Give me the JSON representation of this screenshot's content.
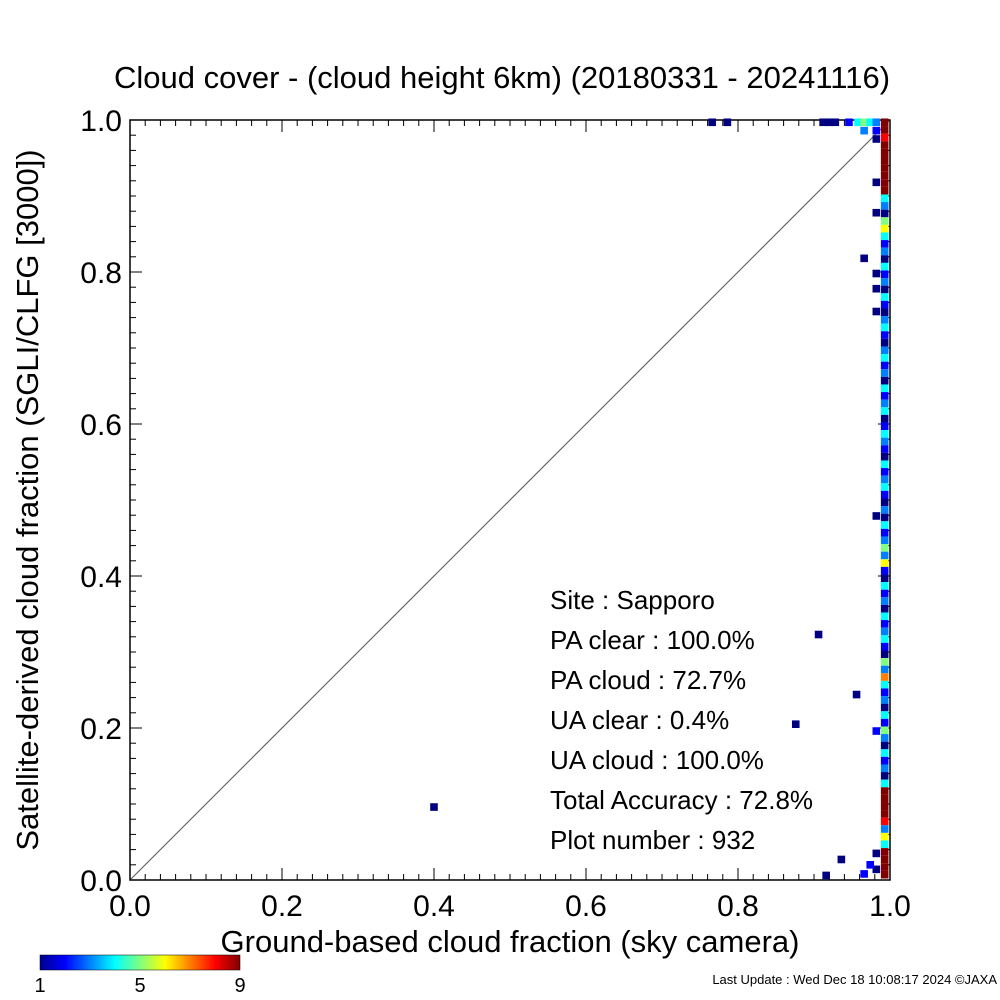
{
  "chart_data": {
    "type": "heatmap",
    "title": "Cloud cover - (cloud height 6km)  (20180331 - 20241116)",
    "xlabel": "Ground-based cloud fraction (sky camera)",
    "ylabel": "Satellite-derived cloud fraction (SGLI/CLFG [3000])",
    "xlim": [
      0.0,
      1.0
    ],
    "ylim": [
      0.0,
      1.0
    ],
    "xticks": [
      "0.0",
      "0.2",
      "0.4",
      "0.6",
      "0.8",
      "1.0"
    ],
    "yticks": [
      "0.0",
      "0.2",
      "0.4",
      "0.6",
      "0.8",
      "1.0"
    ],
    "diagonal_line": true,
    "grid": false,
    "colorbar": {
      "min": 1,
      "max": 9,
      "tick_labels": [
        "1",
        "5",
        "9"
      ],
      "placement": "bottom-left"
    },
    "stats": [
      {
        "label": "Site : Sapporo"
      },
      {
        "label": "PA clear : 100.0%"
      },
      {
        "label": "PA cloud :  72.7%"
      },
      {
        "label": "UA clear :   0.4%"
      },
      {
        "label": "UA cloud : 100.0%"
      },
      {
        "label": "Total Accuracy :  72.8%"
      },
      {
        "label": "Plot number :       932"
      }
    ],
    "points": [
      {
        "x": 0.766,
        "y": 0.997,
        "count": 1
      },
      {
        "x": 0.786,
        "y": 0.997,
        "count": 1
      },
      {
        "x": 0.912,
        "y": 0.997,
        "count": 1
      },
      {
        "x": 0.92,
        "y": 0.997,
        "count": 1
      },
      {
        "x": 0.928,
        "y": 0.997,
        "count": 1
      },
      {
        "x": 0.946,
        "y": 0.997,
        "count": 2
      },
      {
        "x": 0.958,
        "y": 0.997,
        "count": 4
      },
      {
        "x": 0.966,
        "y": 0.997,
        "count": 5
      },
      {
        "x": 0.974,
        "y": 0.997,
        "count": 4
      },
      {
        "x": 0.982,
        "y": 0.997,
        "count": 3
      },
      {
        "x": 0.966,
        "y": 0.986,
        "count": 3
      },
      {
        "x": 0.982,
        "y": 0.986,
        "count": 2
      },
      {
        "x": 0.982,
        "y": 0.975,
        "count": 1
      },
      {
        "x": 0.982,
        "y": 0.918,
        "count": 1
      },
      {
        "x": 0.966,
        "y": 0.818,
        "count": 1
      },
      {
        "x": 0.982,
        "y": 0.878,
        "count": 1
      },
      {
        "x": 0.982,
        "y": 0.798,
        "count": 1
      },
      {
        "x": 0.982,
        "y": 0.778,
        "count": 1
      },
      {
        "x": 0.982,
        "y": 0.748,
        "count": 1
      },
      {
        "x": 0.982,
        "y": 0.479,
        "count": 1
      },
      {
        "x": 0.982,
        "y": 0.196,
        "count": 2
      },
      {
        "x": 0.982,
        "y": 0.035,
        "count": 1
      },
      {
        "x": 0.982,
        "y": 0.014,
        "count": 1
      },
      {
        "x": 0.974,
        "y": 0.02,
        "count": 2
      },
      {
        "x": 0.966,
        "y": 0.008,
        "count": 2
      },
      {
        "x": 0.906,
        "y": 0.323,
        "count": 1
      },
      {
        "x": 0.956,
        "y": 0.244,
        "count": 1
      },
      {
        "x": 0.876,
        "y": 0.205,
        "count": 1
      },
      {
        "x": 0.4,
        "y": 0.096,
        "count": 1
      },
      {
        "x": 0.936,
        "y": 0.027,
        "count": 1
      },
      {
        "x": 0.916,
        "y": 0.006,
        "count": 1
      }
    ],
    "edge_column": {
      "x": 0.993,
      "cells": [
        {
          "y": 0.997,
          "count": 9
        },
        {
          "y": 0.987,
          "count": 9
        },
        {
          "y": 0.977,
          "count": 8
        },
        {
          "y": 0.967,
          "count": 9
        },
        {
          "y": 0.957,
          "count": 9
        },
        {
          "y": 0.947,
          "count": 9
        },
        {
          "y": 0.937,
          "count": 9
        },
        {
          "y": 0.927,
          "count": 9
        },
        {
          "y": 0.917,
          "count": 9
        },
        {
          "y": 0.907,
          "count": 9
        },
        {
          "y": 0.897,
          "count": 4
        },
        {
          "y": 0.887,
          "count": 3
        },
        {
          "y": 0.877,
          "count": 1
        },
        {
          "y": 0.867,
          "count": 5
        },
        {
          "y": 0.857,
          "count": 6
        },
        {
          "y": 0.847,
          "count": 4
        },
        {
          "y": 0.837,
          "count": 2
        },
        {
          "y": 0.827,
          "count": 3
        },
        {
          "y": 0.817,
          "count": 1
        },
        {
          "y": 0.807,
          "count": 4
        },
        {
          "y": 0.797,
          "count": 2
        },
        {
          "y": 0.787,
          "count": 3
        },
        {
          "y": 0.777,
          "count": 1
        },
        {
          "y": 0.767,
          "count": 4
        },
        {
          "y": 0.757,
          "count": 2
        },
        {
          "y": 0.747,
          "count": 1
        },
        {
          "y": 0.737,
          "count": 3
        },
        {
          "y": 0.727,
          "count": 4
        },
        {
          "y": 0.717,
          "count": 2
        },
        {
          "y": 0.707,
          "count": 1
        },
        {
          "y": 0.697,
          "count": 3
        },
        {
          "y": 0.687,
          "count": 4
        },
        {
          "y": 0.677,
          "count": 2
        },
        {
          "y": 0.667,
          "count": 3
        },
        {
          "y": 0.657,
          "count": 1
        },
        {
          "y": 0.647,
          "count": 4
        },
        {
          "y": 0.637,
          "count": 2
        },
        {
          "y": 0.627,
          "count": 3
        },
        {
          "y": 0.617,
          "count": 4
        },
        {
          "y": 0.607,
          "count": 1
        },
        {
          "y": 0.597,
          "count": 2
        },
        {
          "y": 0.587,
          "count": 4
        },
        {
          "y": 0.577,
          "count": 3
        },
        {
          "y": 0.567,
          "count": 2
        },
        {
          "y": 0.557,
          "count": 1
        },
        {
          "y": 0.547,
          "count": 4
        },
        {
          "y": 0.537,
          "count": 2
        },
        {
          "y": 0.527,
          "count": 3
        },
        {
          "y": 0.517,
          "count": 4
        },
        {
          "y": 0.507,
          "count": 2
        },
        {
          "y": 0.497,
          "count": 1
        },
        {
          "y": 0.487,
          "count": 3
        },
        {
          "y": 0.477,
          "count": 1
        },
        {
          "y": 0.467,
          "count": 4
        },
        {
          "y": 0.457,
          "count": 2
        },
        {
          "y": 0.447,
          "count": 3
        },
        {
          "y": 0.437,
          "count": 5
        },
        {
          "y": 0.427,
          "count": 3
        },
        {
          "y": 0.417,
          "count": 6
        },
        {
          "y": 0.407,
          "count": 2
        },
        {
          "y": 0.397,
          "count": 1
        },
        {
          "y": 0.387,
          "count": 4
        },
        {
          "y": 0.377,
          "count": 2
        },
        {
          "y": 0.367,
          "count": 3
        },
        {
          "y": 0.357,
          "count": 1
        },
        {
          "y": 0.347,
          "count": 4
        },
        {
          "y": 0.337,
          "count": 2
        },
        {
          "y": 0.327,
          "count": 3
        },
        {
          "y": 0.317,
          "count": 4
        },
        {
          "y": 0.307,
          "count": 2
        },
        {
          "y": 0.297,
          "count": 1
        },
        {
          "y": 0.287,
          "count": 5
        },
        {
          "y": 0.277,
          "count": 3
        },
        {
          "y": 0.267,
          "count": 7
        },
        {
          "y": 0.257,
          "count": 4
        },
        {
          "y": 0.247,
          "count": 2
        },
        {
          "y": 0.237,
          "count": 3
        },
        {
          "y": 0.227,
          "count": 1
        },
        {
          "y": 0.217,
          "count": 4
        },
        {
          "y": 0.207,
          "count": 2
        },
        {
          "y": 0.197,
          "count": 5
        },
        {
          "y": 0.187,
          "count": 3
        },
        {
          "y": 0.177,
          "count": 1
        },
        {
          "y": 0.167,
          "count": 4
        },
        {
          "y": 0.157,
          "count": 2
        },
        {
          "y": 0.147,
          "count": 3
        },
        {
          "y": 0.137,
          "count": 1
        },
        {
          "y": 0.127,
          "count": 4
        },
        {
          "y": 0.117,
          "count": 9
        },
        {
          "y": 0.107,
          "count": 9
        },
        {
          "y": 0.097,
          "count": 9
        },
        {
          "y": 0.087,
          "count": 9
        },
        {
          "y": 0.077,
          "count": 8
        },
        {
          "y": 0.067,
          "count": 3
        },
        {
          "y": 0.057,
          "count": 6
        },
        {
          "y": 0.047,
          "count": 4
        },
        {
          "y": 0.037,
          "count": 9
        },
        {
          "y": 0.027,
          "count": 9
        },
        {
          "y": 0.017,
          "count": 9
        },
        {
          "y": 0.007,
          "count": 9
        }
      ]
    }
  },
  "footer": "Last Update : Wed Dec 18 10:08:17 2024  ©JAXA"
}
